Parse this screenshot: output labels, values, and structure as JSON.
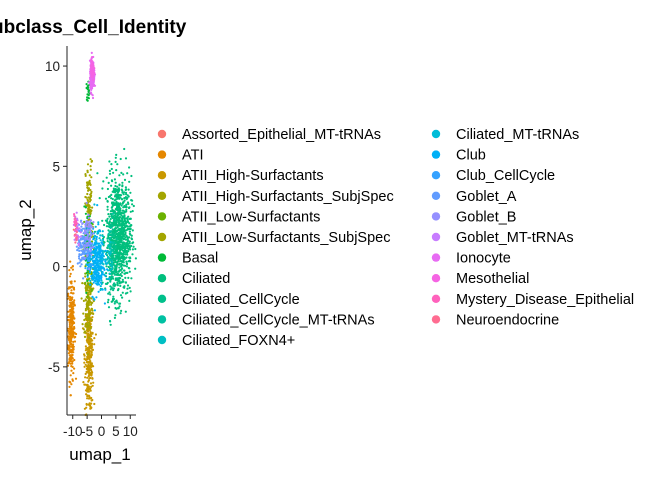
{
  "chart_data": {
    "type": "scatter",
    "title": "ubclass_Cell_Identity",
    "xlabel": "umap_1",
    "ylabel": "umap_2",
    "xlim": [
      -12,
      12
    ],
    "ylim": [
      -7.4,
      11
    ],
    "x_ticks": [
      {
        "value": -10,
        "label": "-10"
      },
      {
        "value": -5,
        "label": "-5"
      },
      {
        "value": 0,
        "label": "0"
      },
      {
        "value": 5,
        "label": "5"
      },
      {
        "value": 10,
        "label": "10"
      }
    ],
    "y_ticks": [
      {
        "value": -5,
        "label": "-5"
      },
      {
        "value": 0,
        "label": "0"
      },
      {
        "value": 5,
        "label": "5"
      },
      {
        "value": 10,
        "label": "10"
      }
    ],
    "grid": false,
    "legend_position": "right",
    "series": [
      {
        "name": "Assorted_Epithelial_MT-tRNAs",
        "color": "#F8766D",
        "clusters": [
          {
            "cx": -9,
            "cy": 2.0,
            "sx": 0.3,
            "sy": 0.3,
            "n": 10
          }
        ]
      },
      {
        "name": "ATI",
        "color": "#E58700",
        "clusters": [
          {
            "cx": -10.5,
            "cy": -3.0,
            "sx": 0.6,
            "sy": 1.3,
            "n": 280
          }
        ]
      },
      {
        "name": "ATII_High-Surfactants",
        "color": "#C99800",
        "clusters": [
          {
            "cx": -4.3,
            "cy": -4.5,
            "sx": 0.75,
            "sy": 1.4,
            "n": 320
          }
        ]
      },
      {
        "name": "ATII_High-Surfactants_SubjSpec",
        "color": "#A3A500",
        "clusters": [
          {
            "cx": -4.6,
            "cy": -1.8,
            "sx": 0.8,
            "sy": 0.9,
            "n": 140
          }
        ]
      },
      {
        "name": "ATII_Low-Surfactants",
        "color": "#6BB100",
        "clusters": [
          {
            "cx": -4.5,
            "cy": 0.5,
            "sx": 0.9,
            "sy": 0.9,
            "n": 80
          }
        ]
      },
      {
        "name": "ATII_Low-Surfactants_SubjSpec",
        "color": "#A3A500",
        "clusters": [
          {
            "cx": -4.3,
            "cy": 3.0,
            "sx": 0.6,
            "sy": 1.1,
            "n": 110
          }
        ]
      },
      {
        "name": "Basal",
        "color": "#00BA38",
        "clusters": [
          {
            "cx": -4.6,
            "cy": 8.8,
            "sx": 0.3,
            "sy": 0.25,
            "n": 20
          },
          {
            "cx": -5.0,
            "cy": 1.2,
            "sx": 0.6,
            "sy": 0.8,
            "n": 60
          }
        ]
      },
      {
        "name": "Ciliated",
        "color": "#00BF7D",
        "clusters": [
          {
            "cx": 6.0,
            "cy": 1.5,
            "sx": 2.2,
            "sy": 1.5,
            "n": 900
          }
        ]
      },
      {
        "name": "Ciliated_CellCycle",
        "color": "#00C08B",
        "clusters": [
          {
            "cx": 3.8,
            "cy": 0.6,
            "sx": 0.8,
            "sy": 1.1,
            "n": 90
          }
        ]
      },
      {
        "name": "Ciliated_CellCycle_MT-tRNAs",
        "color": "#00C1A3",
        "clusters": [
          {
            "cx": 3.0,
            "cy": 1.0,
            "sx": 0.6,
            "sy": 0.6,
            "n": 30
          }
        ]
      },
      {
        "name": "Ciliated_FOXN4+",
        "color": "#00BFC4",
        "clusters": [
          {
            "cx": 2.8,
            "cy": 0.2,
            "sx": 0.5,
            "sy": 0.5,
            "n": 25
          }
        ]
      },
      {
        "name": "Ciliated_MT-tRNAs",
        "color": "#00BCD8",
        "clusters": [
          {
            "cx": -0.5,
            "cy": 0.6,
            "sx": 1.0,
            "sy": 0.7,
            "n": 70
          }
        ]
      },
      {
        "name": "Club",
        "color": "#00B0F6",
        "clusters": [
          {
            "cx": -2.0,
            "cy": 0.2,
            "sx": 1.4,
            "sy": 0.8,
            "n": 260
          }
        ]
      },
      {
        "name": "Club_CellCycle",
        "color": "#35A2FF",
        "clusters": [
          {
            "cx": -4.5,
            "cy": 0.9,
            "sx": 0.7,
            "sy": 0.5,
            "n": 50
          }
        ]
      },
      {
        "name": "Goblet_A",
        "color": "#619CFF",
        "clusters": [
          {
            "cx": -6.5,
            "cy": 1.1,
            "sx": 1.1,
            "sy": 0.55,
            "n": 100
          }
        ]
      },
      {
        "name": "Goblet_B",
        "color": "#9590FF",
        "clusters": [
          {
            "cx": -4.8,
            "cy": 1.7,
            "sx": 0.8,
            "sy": 0.6,
            "n": 70
          }
        ]
      },
      {
        "name": "Goblet_MT-tRNAs",
        "color": "#C77CFF",
        "clusters": [
          {
            "cx": -8.4,
            "cy": 1.8,
            "sx": 0.5,
            "sy": 0.5,
            "n": 30
          }
        ]
      },
      {
        "name": "Ionocyte",
        "color": "#E76BF3",
        "clusters": [
          {
            "cx": -3.2,
            "cy": 9.5,
            "sx": 0.4,
            "sy": 0.35,
            "n": 220
          }
        ]
      },
      {
        "name": "Mesothelial",
        "color": "#F564E3",
        "clusters": [
          {
            "cx": -3.2,
            "cy": 9.8,
            "sx": 0.3,
            "sy": 0.25,
            "n": 60
          }
        ]
      },
      {
        "name": "Mystery_Disease_Epithelial",
        "color": "#FF62BC",
        "clusters": [
          {
            "cx": -9.0,
            "cy": 2.1,
            "sx": 0.3,
            "sy": 0.4,
            "n": 20
          }
        ]
      },
      {
        "name": "Neuroendocrine",
        "color": "#FF6C91",
        "clusters": [
          {
            "cx": -8.8,
            "cy": 1.5,
            "sx": 0.2,
            "sy": 0.2,
            "n": 6
          }
        ]
      }
    ]
  }
}
